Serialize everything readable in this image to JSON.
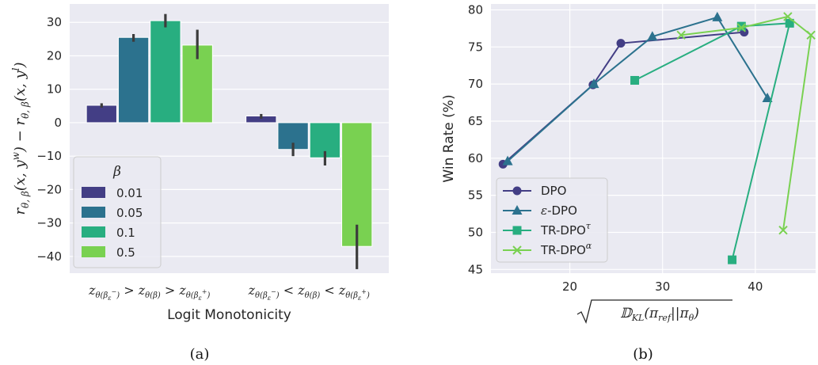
{
  "chart_data": [
    {
      "type": "bar",
      "xlabel": "Logit Monotonicity",
      "ylabel_parts": [
        "r",
        "θ, β",
        "(x, y",
        "w",
        ") − r",
        "θ, β",
        "(x, y",
        "l",
        ")"
      ],
      "caption": "(a)",
      "categories": [
        {
          "parts": [
            "z",
            "θ(β",
            "ε",
            "−",
            ")",
            " > z",
            "θ(β)",
            " > z",
            "θ(β",
            "ε",
            "+",
            ")"
          ]
        },
        {
          "parts": [
            "z",
            "θ(β",
            "ε",
            "−",
            ")",
            " < z",
            "θ(β)",
            " < z",
            "θ(β",
            "ε",
            "+",
            ")"
          ]
        }
      ],
      "legend_title": "β",
      "legend_position": "lower-left",
      "series": [
        {
          "name": "0.01",
          "color": "#433e85",
          "values": [
            5.2,
            2.0
          ],
          "err_low": [
            4.5,
            1.2
          ],
          "err_high": [
            5.8,
            2.6
          ]
        },
        {
          "name": "0.05",
          "color": "#2c728e",
          "values": [
            25.5,
            -8.0
          ],
          "err_low": [
            24.2,
            -10.0
          ],
          "err_high": [
            26.5,
            -6.0
          ]
        },
        {
          "name": "0.1",
          "color": "#28ae80",
          "values": [
            30.5,
            -10.5
          ],
          "err_low": [
            28.5,
            -12.8
          ],
          "err_high": [
            32.5,
            -8.5
          ]
        },
        {
          "name": "0.5",
          "color": "#79d151",
          "values": [
            23.2,
            -37.0
          ],
          "err_low": [
            19.0,
            -43.8
          ],
          "err_high": [
            27.8,
            -30.5
          ]
        }
      ],
      "yticks": [
        -40,
        -30,
        -20,
        -10,
        0,
        10,
        20,
        30
      ],
      "ylim": [
        -45,
        35.5
      ],
      "grid": true
    },
    {
      "type": "line",
      "xlabel_parts": [
        "𝔻",
        "KL",
        "(π",
        "ref",
        "||π",
        "θ",
        ")"
      ],
      "ylabel": "Win Rate (%)",
      "caption": "(b)",
      "xticks": [
        20,
        30,
        40
      ],
      "yticks": [
        45,
        50,
        55,
        60,
        65,
        70,
        75,
        80
      ],
      "xlim": [
        11.5,
        46.5
      ],
      "ylim": [
        44.5,
        80.8
      ],
      "grid": true,
      "legend_position": "lower-left",
      "series": [
        {
          "name": "DPO",
          "label_parts": [
            "DPO"
          ],
          "color": "#433e85",
          "marker": "circle",
          "x": [
            12.8,
            22.5,
            25.5,
            38.8
          ],
          "y": [
            59.2,
            69.9,
            75.5,
            77.0
          ]
        },
        {
          "name": "ε-DPO",
          "label_parts": [
            "ε",
            "-DPO"
          ],
          "color": "#2c728e",
          "marker": "triangle",
          "x": [
            13.3,
            22.6,
            28.9,
            35.9,
            41.3
          ],
          "y": [
            59.6,
            70.0,
            76.4,
            79.0,
            68.1
          ]
        },
        {
          "name": "TR-DPO^τ",
          "label_parts": [
            "TR-DPO",
            "τ"
          ],
          "color": "#28ae80",
          "marker": "square",
          "x": [
            27.0,
            38.5,
            43.7,
            37.5
          ],
          "y": [
            70.5,
            77.8,
            78.2,
            46.3
          ]
        },
        {
          "name": "TR-DPO^α",
          "label_parts": [
            "TR-DPO",
            "α"
          ],
          "color": "#79d151",
          "marker": "x",
          "x": [
            32.0,
            38.5,
            43.5,
            46.0,
            43.0
          ],
          "y": [
            76.6,
            77.6,
            79.1,
            76.6,
            50.3
          ]
        }
      ]
    }
  ]
}
